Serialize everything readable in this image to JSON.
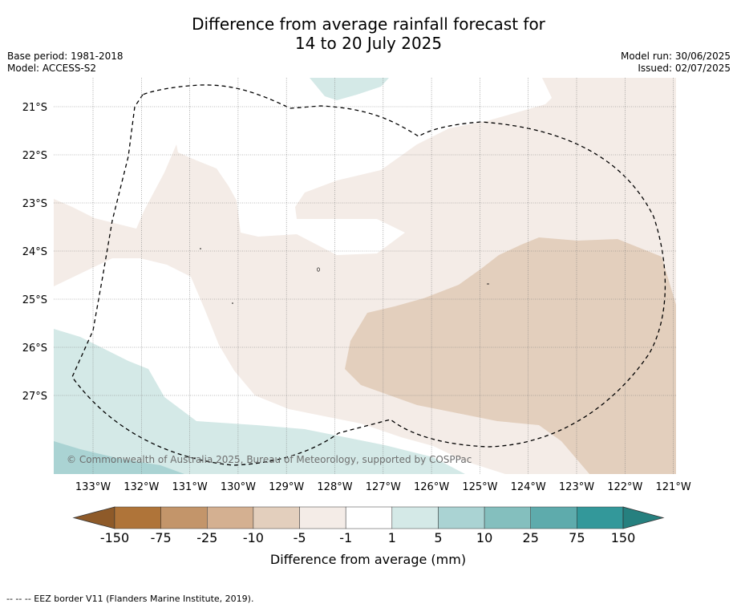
{
  "title": {
    "line1": "Difference from average rainfall forecast for",
    "line2": "14 to 20 July 2025"
  },
  "meta_left": {
    "base_period": "Base period: 1981-2018",
    "model": "Model: ACCESS-S2"
  },
  "meta_right": {
    "model_run": "Model run: 30/06/2025",
    "issued": "Issued: 02/07/2025"
  },
  "map": {
    "lat_labels": [
      "21°S",
      "22°S",
      "23°S",
      "24°S",
      "25°S",
      "26°S",
      "27°S"
    ],
    "lon_labels": [
      "133°W",
      "132°W",
      "131°W",
      "130°W",
      "129°W",
      "128°W",
      "127°W",
      "126°W",
      "125°W",
      "124°W",
      "123°W",
      "122°W",
      "121°W"
    ],
    "copyright": "© Commonwealth of Australia 2025, Bureau of Meteorology, supported by COSPPac",
    "gridlines": true
  },
  "colorbar": {
    "labels": [
      "-150",
      "-75",
      "-25",
      "-10",
      "-5",
      "-1",
      "1",
      "5",
      "10",
      "25",
      "75",
      "150"
    ],
    "colors": [
      "#af7439",
      "#c3956a",
      "#d4b091",
      "#e3cfbd",
      "#f4ece7",
      "#ffffff",
      "#d4e9e7",
      "#aad3d3",
      "#84bfbe",
      "#5eabac",
      "#33989a"
    ],
    "extend_low_color": "#8e5a29",
    "extend_high_color": "#26807f",
    "title": "Difference from average (mm)"
  },
  "footer": {
    "legend_text": "--  --  -- EEZ border V11 (Flanders Marine Institute, 2019)."
  }
}
